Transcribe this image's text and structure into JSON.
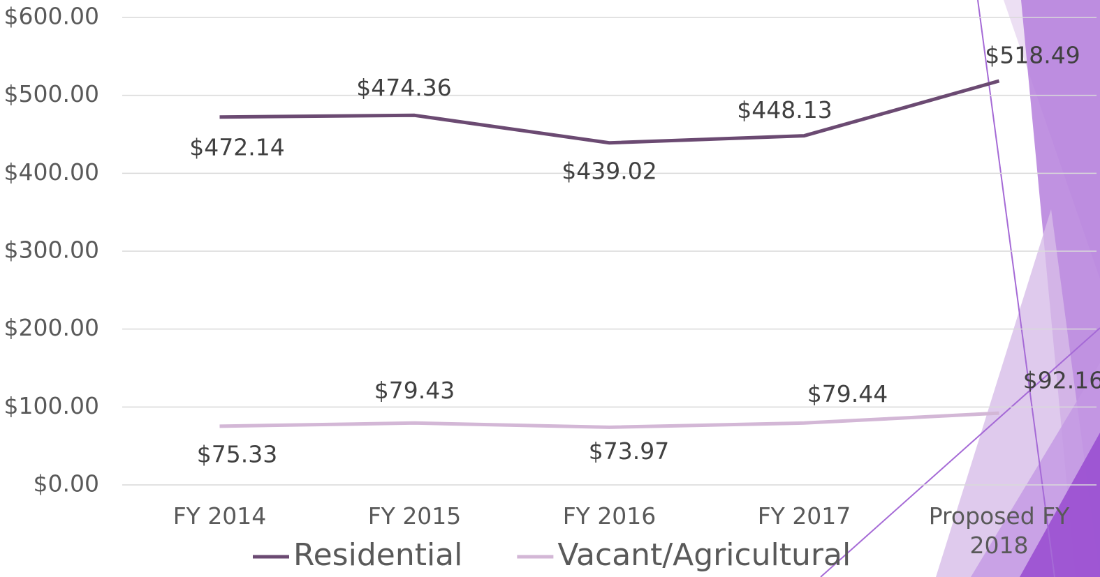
{
  "chart_data": {
    "type": "line",
    "categories": [
      "FY 2014",
      "FY 2015",
      "FY 2016",
      "FY 2017",
      "Proposed FY 2018"
    ],
    "series": [
      {
        "name": "Residential",
        "color": "#6b4a72",
        "values": [
          472.14,
          474.36,
          439.02,
          448.13,
          518.49
        ],
        "value_labels": [
          "$472.14",
          "$474.36",
          "$439.02",
          "$448.13",
          "$518.49"
        ]
      },
      {
        "name": "Vacant/Agricultural",
        "color": "#d3b7d6",
        "values": [
          75.33,
          79.43,
          73.97,
          79.44,
          92.16
        ],
        "value_labels": [
          "$75.33",
          "$79.43",
          "$73.97",
          "$79.44",
          "$92.16"
        ]
      }
    ],
    "ylim": [
      0,
      600
    ],
    "yticks": [
      {
        "value": 0,
        "label": "$0.00"
      },
      {
        "value": 100,
        "label": "$100.00"
      },
      {
        "value": 200,
        "label": "$200.00"
      },
      {
        "value": 300,
        "label": "$300.00"
      },
      {
        "value": 400,
        "label": "$400.00"
      },
      {
        "value": 500,
        "label": "$500.00"
      },
      {
        "value": 600,
        "label": "$600.00"
      }
    ],
    "grid": true,
    "legend": "bottom"
  }
}
